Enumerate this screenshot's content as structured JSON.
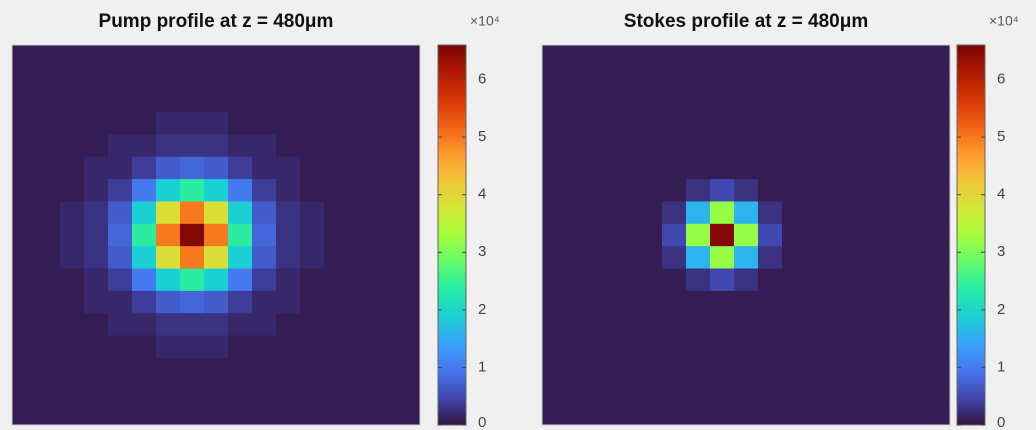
{
  "chart_data": [
    {
      "type": "heatmap",
      "title": "Pump profile at z = 480μm",
      "colorbar_exponent": "×10⁴",
      "zlim": [
        0,
        6.6
      ],
      "zticks": [
        0,
        1,
        2,
        3,
        4,
        5,
        6
      ],
      "colormap": [
        "#30123b",
        "#4145ab",
        "#4675ed",
        "#39a2fc",
        "#1bcfd4",
        "#24eca6",
        "#61fc6c",
        "#a4fc3b",
        "#d1e834",
        "#f3c63a",
        "#fe9b2d",
        "#f36315",
        "#d93806",
        "#b11901",
        "#7a0403"
      ],
      "z": [
        [
          0.1,
          0.1,
          0.1,
          0.1,
          0.1,
          0.1,
          0.1,
          0.1,
          0.1,
          0.1,
          0.1,
          0.1,
          0.1,
          0.1,
          0.1,
          0.1,
          0.1
        ],
        [
          0.1,
          0.1,
          0.1,
          0.1,
          0.1,
          0.1,
          0.1,
          0.1,
          0.1,
          0.1,
          0.1,
          0.1,
          0.1,
          0.1,
          0.1,
          0.1,
          0.1
        ],
        [
          0.1,
          0.1,
          0.1,
          0.1,
          0.1,
          0.1,
          0.1,
          0.1,
          0.1,
          0.1,
          0.1,
          0.1,
          0.1,
          0.1,
          0.1,
          0.1,
          0.1
        ],
        [
          0.1,
          0.1,
          0.1,
          0.1,
          0.1,
          0.1,
          0.2,
          0.2,
          0.2,
          0.1,
          0.1,
          0.1,
          0.1,
          0.1,
          0.1,
          0.1,
          0.1
        ],
        [
          0.1,
          0.1,
          0.1,
          0.1,
          0.2,
          0.2,
          0.3,
          0.3,
          0.3,
          0.2,
          0.2,
          0.1,
          0.1,
          0.1,
          0.1,
          0.1,
          0.1
        ],
        [
          0.1,
          0.1,
          0.1,
          0.2,
          0.2,
          0.4,
          0.7,
          0.8,
          0.7,
          0.4,
          0.2,
          0.2,
          0.1,
          0.1,
          0.1,
          0.1,
          0.1
        ],
        [
          0.1,
          0.1,
          0.1,
          0.2,
          0.4,
          1.0,
          1.9,
          2.4,
          1.9,
          1.0,
          0.4,
          0.2,
          0.1,
          0.1,
          0.1,
          0.1,
          0.1
        ],
        [
          0.1,
          0.1,
          0.2,
          0.3,
          0.7,
          1.9,
          3.9,
          5.0,
          3.9,
          1.9,
          0.7,
          0.3,
          0.2,
          0.1,
          0.1,
          0.1,
          0.1
        ],
        [
          0.1,
          0.1,
          0.2,
          0.3,
          0.8,
          2.4,
          5.0,
          6.5,
          5.0,
          2.4,
          0.8,
          0.3,
          0.2,
          0.1,
          0.1,
          0.1,
          0.1
        ],
        [
          0.1,
          0.1,
          0.2,
          0.3,
          0.7,
          1.9,
          3.9,
          5.0,
          3.9,
          1.9,
          0.7,
          0.3,
          0.2,
          0.1,
          0.1,
          0.1,
          0.1
        ],
        [
          0.1,
          0.1,
          0.1,
          0.2,
          0.4,
          1.0,
          1.9,
          2.4,
          1.9,
          1.0,
          0.4,
          0.2,
          0.1,
          0.1,
          0.1,
          0.1,
          0.1
        ],
        [
          0.1,
          0.1,
          0.1,
          0.2,
          0.2,
          0.4,
          0.7,
          0.8,
          0.7,
          0.4,
          0.2,
          0.2,
          0.1,
          0.1,
          0.1,
          0.1,
          0.1
        ],
        [
          0.1,
          0.1,
          0.1,
          0.1,
          0.2,
          0.2,
          0.3,
          0.3,
          0.3,
          0.2,
          0.2,
          0.1,
          0.1,
          0.1,
          0.1,
          0.1,
          0.1
        ],
        [
          0.1,
          0.1,
          0.1,
          0.1,
          0.1,
          0.1,
          0.2,
          0.2,
          0.2,
          0.1,
          0.1,
          0.1,
          0.1,
          0.1,
          0.1,
          0.1,
          0.1
        ],
        [
          0.1,
          0.1,
          0.1,
          0.1,
          0.1,
          0.1,
          0.1,
          0.1,
          0.1,
          0.1,
          0.1,
          0.1,
          0.1,
          0.1,
          0.1,
          0.1,
          0.1
        ],
        [
          0.1,
          0.1,
          0.1,
          0.1,
          0.1,
          0.1,
          0.1,
          0.1,
          0.1,
          0.1,
          0.1,
          0.1,
          0.1,
          0.1,
          0.1,
          0.1,
          0.1
        ],
        [
          0.1,
          0.1,
          0.1,
          0.1,
          0.1,
          0.1,
          0.1,
          0.1,
          0.1,
          0.1,
          0.1,
          0.1,
          0.1,
          0.1,
          0.1,
          0.1,
          0.1
        ]
      ]
    },
    {
      "type": "heatmap",
      "title": "Stokes profile at z = 480μm",
      "colorbar_exponent": "×10⁴",
      "zlim": [
        0,
        6.6
      ],
      "zticks": [
        0,
        1,
        2,
        3,
        4,
        5,
        6
      ],
      "colormap": [
        "#30123b",
        "#4145ab",
        "#4675ed",
        "#39a2fc",
        "#1bcfd4",
        "#24eca6",
        "#61fc6c",
        "#a4fc3b",
        "#d1e834",
        "#f3c63a",
        "#fe9b2d",
        "#f36315",
        "#d93806",
        "#b11901",
        "#7a0403"
      ],
      "z": [
        [
          0.1,
          0.1,
          0.1,
          0.1,
          0.1,
          0.1,
          0.1,
          0.1,
          0.1,
          0.1,
          0.1,
          0.1,
          0.1,
          0.1,
          0.1,
          0.1,
          0.1
        ],
        [
          0.1,
          0.1,
          0.1,
          0.1,
          0.1,
          0.1,
          0.1,
          0.1,
          0.1,
          0.1,
          0.1,
          0.1,
          0.1,
          0.1,
          0.1,
          0.1,
          0.1
        ],
        [
          0.1,
          0.1,
          0.1,
          0.1,
          0.1,
          0.1,
          0.1,
          0.1,
          0.1,
          0.1,
          0.1,
          0.1,
          0.1,
          0.1,
          0.1,
          0.1,
          0.1
        ],
        [
          0.1,
          0.1,
          0.1,
          0.1,
          0.1,
          0.1,
          0.1,
          0.1,
          0.1,
          0.1,
          0.1,
          0.1,
          0.1,
          0.1,
          0.1,
          0.1,
          0.1
        ],
        [
          0.1,
          0.1,
          0.1,
          0.1,
          0.1,
          0.1,
          0.1,
          0.1,
          0.1,
          0.1,
          0.1,
          0.1,
          0.1,
          0.1,
          0.1,
          0.1,
          0.1
        ],
        [
          0.1,
          0.1,
          0.1,
          0.1,
          0.1,
          0.1,
          0.1,
          0.1,
          0.1,
          0.1,
          0.1,
          0.1,
          0.1,
          0.1,
          0.1,
          0.1,
          0.1
        ],
        [
          0.1,
          0.1,
          0.1,
          0.1,
          0.1,
          0.1,
          0.3,
          0.5,
          0.3,
          0.1,
          0.1,
          0.1,
          0.1,
          0.1,
          0.1,
          0.1,
          0.1
        ],
        [
          0.1,
          0.1,
          0.1,
          0.1,
          0.1,
          0.3,
          1.6,
          3.2,
          1.6,
          0.3,
          0.1,
          0.1,
          0.1,
          0.1,
          0.1,
          0.1,
          0.1
        ],
        [
          0.1,
          0.1,
          0.1,
          0.1,
          0.1,
          0.5,
          3.2,
          6.5,
          3.2,
          0.5,
          0.1,
          0.1,
          0.1,
          0.1,
          0.1,
          0.1,
          0.1
        ],
        [
          0.1,
          0.1,
          0.1,
          0.1,
          0.1,
          0.3,
          1.6,
          3.2,
          1.6,
          0.3,
          0.1,
          0.1,
          0.1,
          0.1,
          0.1,
          0.1,
          0.1
        ],
        [
          0.1,
          0.1,
          0.1,
          0.1,
          0.1,
          0.1,
          0.3,
          0.5,
          0.3,
          0.1,
          0.1,
          0.1,
          0.1,
          0.1,
          0.1,
          0.1,
          0.1
        ],
        [
          0.1,
          0.1,
          0.1,
          0.1,
          0.1,
          0.1,
          0.1,
          0.1,
          0.1,
          0.1,
          0.1,
          0.1,
          0.1,
          0.1,
          0.1,
          0.1,
          0.1
        ],
        [
          0.1,
          0.1,
          0.1,
          0.1,
          0.1,
          0.1,
          0.1,
          0.1,
          0.1,
          0.1,
          0.1,
          0.1,
          0.1,
          0.1,
          0.1,
          0.1,
          0.1
        ],
        [
          0.1,
          0.1,
          0.1,
          0.1,
          0.1,
          0.1,
          0.1,
          0.1,
          0.1,
          0.1,
          0.1,
          0.1,
          0.1,
          0.1,
          0.1,
          0.1,
          0.1
        ],
        [
          0.1,
          0.1,
          0.1,
          0.1,
          0.1,
          0.1,
          0.1,
          0.1,
          0.1,
          0.1,
          0.1,
          0.1,
          0.1,
          0.1,
          0.1,
          0.1,
          0.1
        ],
        [
          0.1,
          0.1,
          0.1,
          0.1,
          0.1,
          0.1,
          0.1,
          0.1,
          0.1,
          0.1,
          0.1,
          0.1,
          0.1,
          0.1,
          0.1,
          0.1,
          0.1
        ],
        [
          0.1,
          0.1,
          0.1,
          0.1,
          0.1,
          0.1,
          0.1,
          0.1,
          0.1,
          0.1,
          0.1,
          0.1,
          0.1,
          0.1,
          0.1,
          0.1,
          0.1
        ]
      ]
    }
  ]
}
